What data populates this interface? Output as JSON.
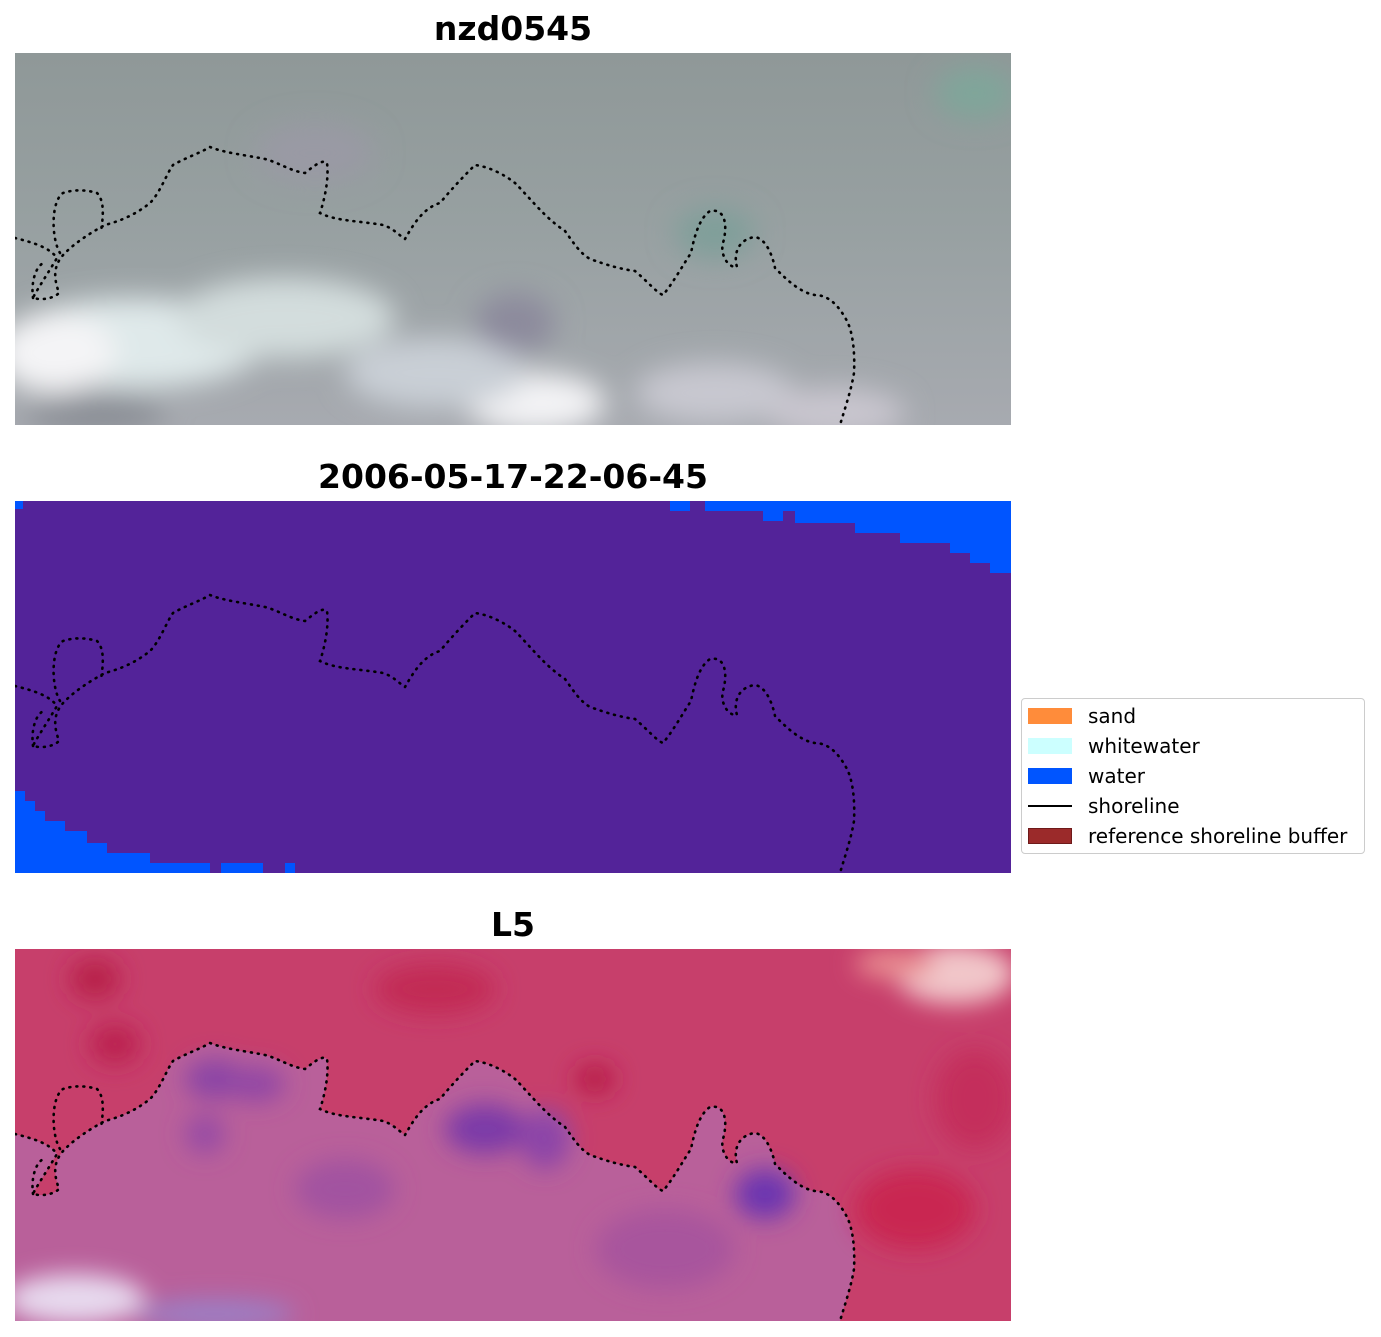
{
  "panels": [
    {
      "title": "nzd0545",
      "kind": "rgb"
    },
    {
      "title": "2006-05-17-22-06-45",
      "kind": "classification"
    },
    {
      "title": "L5",
      "kind": "index"
    }
  ],
  "colors": {
    "sand": "#ff8c3a",
    "whitewater": "#ccffff",
    "water": "#0055ff",
    "other": "#532399",
    "shoreline": "#000000",
    "reference_buffer": "#9b2a2a"
  },
  "legend": {
    "items": [
      {
        "label": "sand",
        "type": "patch",
        "color": "#ff8c3a"
      },
      {
        "label": "whitewater",
        "type": "patch",
        "color": "#ccffff"
      },
      {
        "label": "water",
        "type": "patch",
        "color": "#0055ff"
      },
      {
        "label": "shoreline",
        "type": "line",
        "color": "#000000"
      },
      {
        "label": "reference shoreline buffer",
        "type": "patch",
        "color": "#9b2a2a"
      }
    ]
  }
}
